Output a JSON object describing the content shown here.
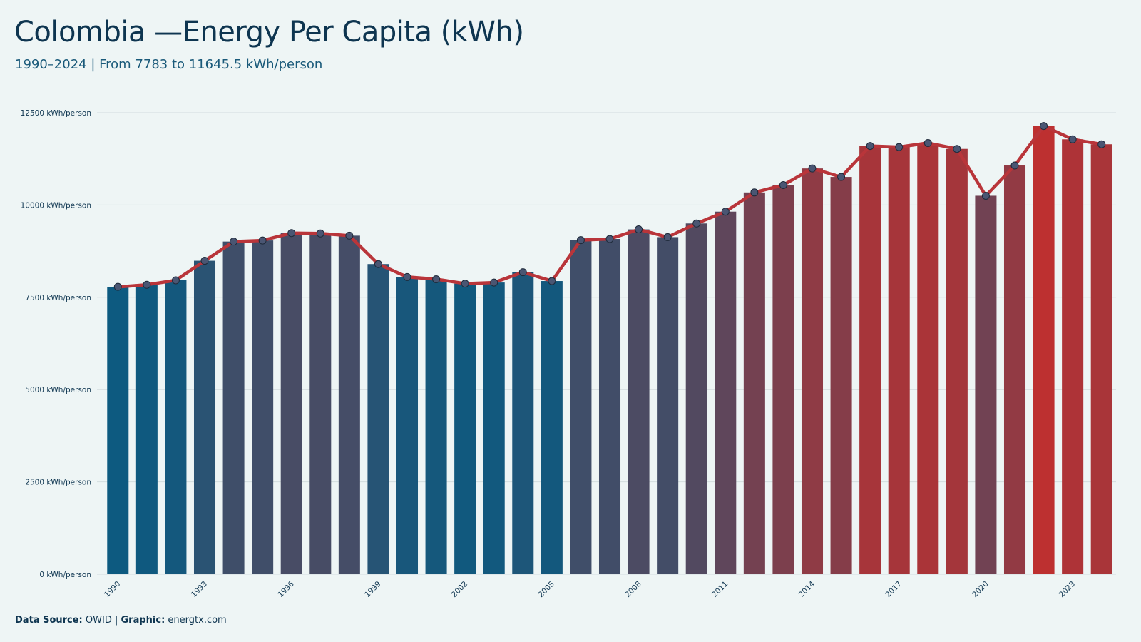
{
  "title": "Colombia —Energy Per Capita (kWh)",
  "subtitle": "1990–2024 | From 7783 to 11645.5 kWh/person",
  "footer": {
    "source_label": "Data Source:",
    "source_value": "OWID |",
    "graphic_label": "Graphic:",
    "graphic_value": "energtx.com"
  },
  "colors": {
    "low": "#0d5a80",
    "high": "#bd3030",
    "line": "#b9353a",
    "marker": "#4a5673",
    "grid": "#d3dcde",
    "background": "#eef5f5"
  },
  "chart_data": {
    "type": "bar",
    "unit_suffix": " kWh/person",
    "ylim": [
      0,
      12500
    ],
    "yticks": [
      0,
      2500,
      5000,
      7500,
      10000,
      12500
    ],
    "x": [
      1990,
      1991,
      1992,
      1993,
      1994,
      1995,
      1996,
      1997,
      1998,
      1999,
      2000,
      2001,
      2002,
      2003,
      2004,
      2005,
      2006,
      2007,
      2008,
      2009,
      2010,
      2011,
      2012,
      2013,
      2014,
      2015,
      2016,
      2017,
      2018,
      2019,
      2020,
      2021,
      2022,
      2023,
      2024
    ],
    "xtick_labels": [
      "1990",
      "1993",
      "1996",
      "1999",
      "2002",
      "2005",
      "2008",
      "2011",
      "2014",
      "2017",
      "2020",
      "2023"
    ],
    "values": [
      7783,
      7840,
      7960,
      8490,
      9010,
      9040,
      9240,
      9230,
      9170,
      8400,
      8050,
      7990,
      7870,
      7900,
      8180,
      7940,
      9050,
      9080,
      9340,
      9130,
      9500,
      9820,
      10340,
      10540,
      10990,
      10760,
      11600,
      11570,
      11680,
      11520,
      10250,
      11070,
      12140,
      11780,
      11645.5
    ],
    "grid": true,
    "overlay_line": true
  }
}
